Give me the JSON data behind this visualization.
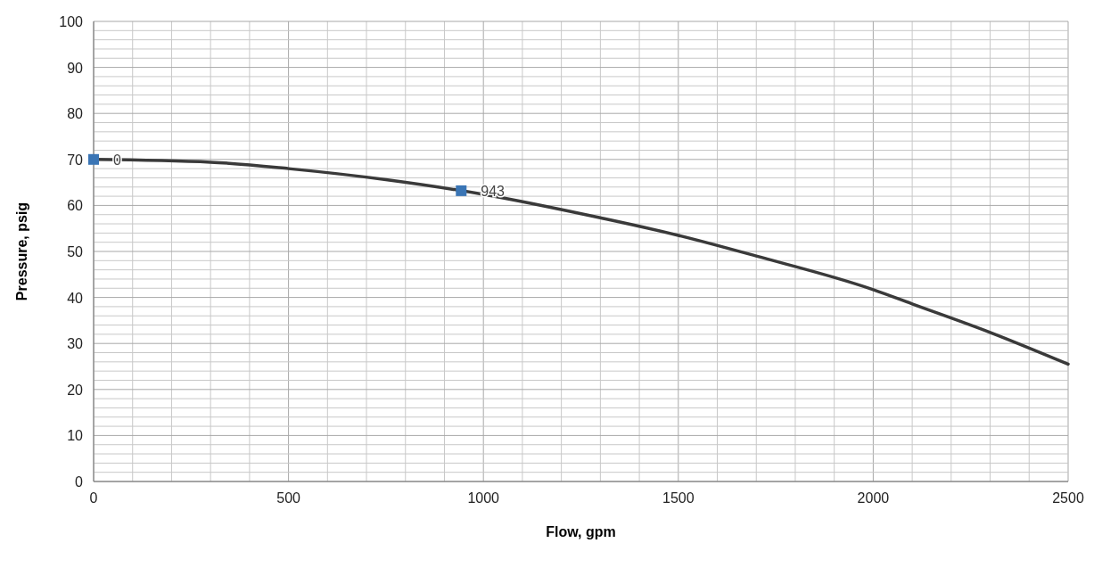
{
  "chart_data": {
    "type": "line",
    "xlabel": "Flow, gpm",
    "ylabel": "Pressure, psig",
    "xlim": [
      0,
      2500
    ],
    "ylim": [
      0,
      100
    ],
    "xticks": [
      0,
      {
        "value": 100,
        "label": null
      },
      {
        "value": 200,
        "label": null
      },
      {
        "value": 300,
        "label": null
      },
      {
        "value": 400,
        "label": null
      },
      500,
      {
        "value": 600,
        "label": null
      },
      {
        "value": 700,
        "label": null
      },
      {
        "value": 800,
        "label": null
      },
      {
        "value": 900,
        "label": null
      },
      1000,
      {
        "value": 1100,
        "label": null
      },
      {
        "value": 1200,
        "label": null
      },
      {
        "value": 1300,
        "label": null
      },
      {
        "value": 1400,
        "label": null
      },
      1500,
      {
        "value": 1600,
        "label": null
      },
      {
        "value": 1700,
        "label": null
      },
      {
        "value": 1800,
        "label": null
      },
      {
        "value": 1900,
        "label": null
      },
      2000,
      {
        "value": 2100,
        "label": null
      },
      {
        "value": 2200,
        "label": null
      },
      {
        "value": 2300,
        "label": null
      },
      {
        "value": 2400,
        "label": null
      },
      2500
    ],
    "yticks": [
      0,
      {
        "value": 2,
        "label": null
      },
      {
        "value": 4,
        "label": null
      },
      {
        "value": 6,
        "label": null
      },
      {
        "value": 8,
        "label": null
      },
      10,
      {
        "value": 12,
        "label": null
      },
      {
        "value": 14,
        "label": null
      },
      {
        "value": 16,
        "label": null
      },
      {
        "value": 18,
        "label": null
      },
      20,
      {
        "value": 22,
        "label": null
      },
      {
        "value": 24,
        "label": null
      },
      {
        "value": 26,
        "label": null
      },
      {
        "value": 28,
        "label": null
      },
      30,
      {
        "value": 32,
        "label": null
      },
      {
        "value": 34,
        "label": null
      },
      {
        "value": 36,
        "label": null
      },
      {
        "value": 38,
        "label": null
      },
      40,
      {
        "value": 42,
        "label": null
      },
      {
        "value": 44,
        "label": null
      },
      {
        "value": 46,
        "label": null
      },
      {
        "value": 48,
        "label": null
      },
      50,
      {
        "value": 52,
        "label": null
      },
      {
        "value": 54,
        "label": null
      },
      {
        "value": 56,
        "label": null
      },
      {
        "value": 58,
        "label": null
      },
      60,
      {
        "value": 62,
        "label": null
      },
      {
        "value": 64,
        "label": null
      },
      {
        "value": 66,
        "label": null
      },
      {
        "value": 68,
        "label": null
      },
      70,
      {
        "value": 72,
        "label": null
      },
      {
        "value": 74,
        "label": null
      },
      {
        "value": 76,
        "label": null
      },
      {
        "value": 78,
        "label": null
      },
      80,
      {
        "value": 82,
        "label": null
      },
      {
        "value": 84,
        "label": null
      },
      {
        "value": 86,
        "label": null
      },
      {
        "value": 88,
        "label": null
      },
      90,
      {
        "value": 92,
        "label": null
      },
      {
        "value": 94,
        "label": null
      },
      {
        "value": 96,
        "label": null
      },
      {
        "value": 98,
        "label": null
      },
      100
    ],
    "grid": true,
    "annotations": [
      {
        "text": "0",
        "x": 0,
        "y": 70
      },
      {
        "text": "943",
        "x": 943,
        "y": 63.2
      }
    ],
    "series": [
      {
        "color": "#3a3a3a",
        "marker": "none",
        "x": [
          0,
          300,
          500,
          750,
          1000,
          1300,
          1500,
          1700,
          2000,
          2100,
          2300,
          2500
        ],
        "values": [
          70,
          69.4,
          68,
          65.6,
          62.4,
          57.3,
          53.5,
          49,
          41.7,
          38.6,
          32.4,
          25.5
        ]
      },
      {
        "type": "scatter",
        "color": "#3a75b5",
        "marker": "square",
        "x": [
          0,
          943
        ],
        "values": [
          70,
          63.2
        ]
      }
    ]
  }
}
